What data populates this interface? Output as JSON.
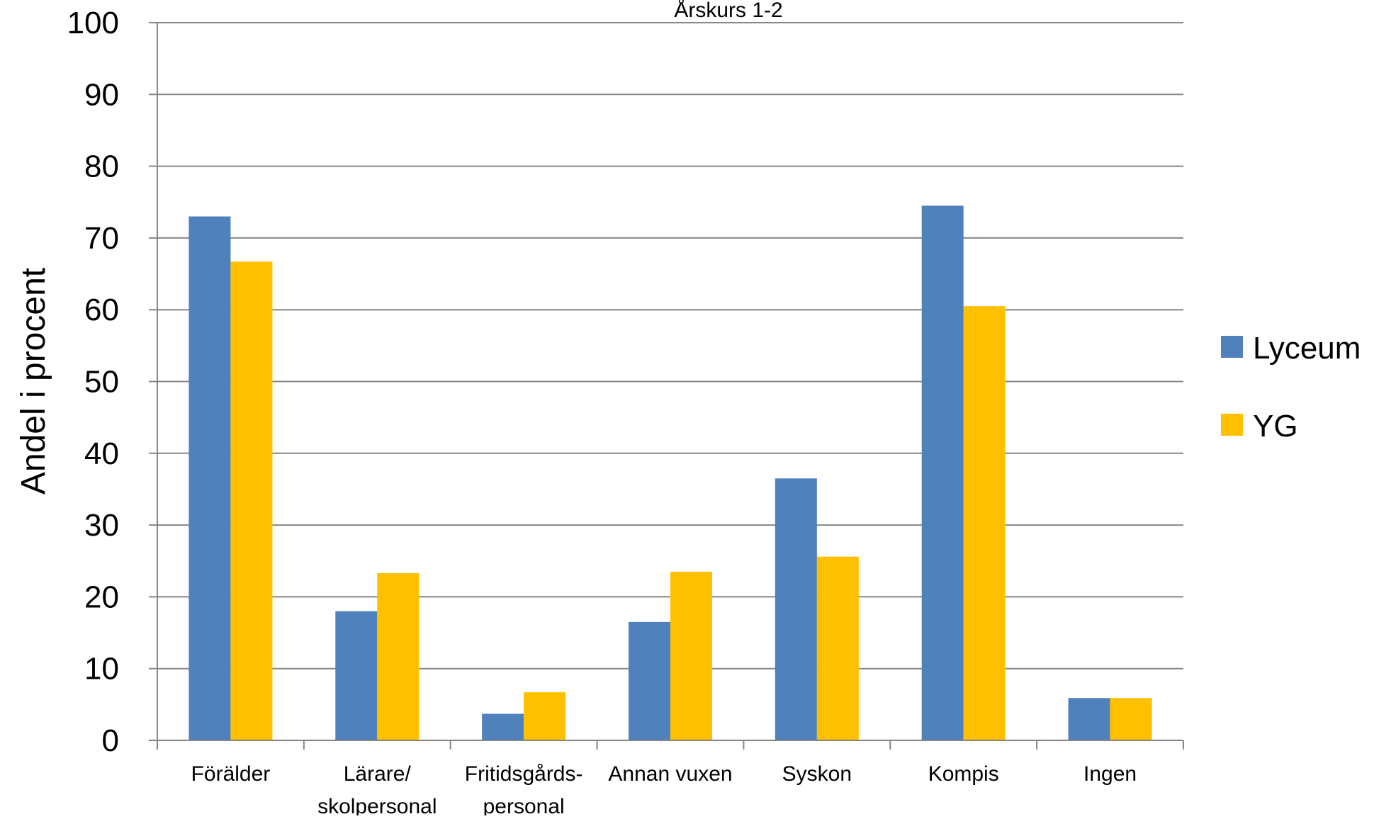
{
  "chart_data": {
    "type": "bar",
    "title": "Årskurs 1-2",
    "ylabel": "Andel i procent",
    "xlabel": "",
    "ylim": [
      0,
      100
    ],
    "yticks": [
      0,
      10,
      20,
      30,
      40,
      50,
      60,
      70,
      80,
      90,
      100
    ],
    "grid": true,
    "legend": "right",
    "categories": [
      [
        "Förälder"
      ],
      [
        "Lärare/",
        "skolpersonal"
      ],
      [
        "Fritidsgårds-",
        "personal"
      ],
      [
        "Annan vuxen"
      ],
      [
        "Syskon"
      ],
      [
        "Kompis"
      ],
      [
        "Ingen"
      ]
    ],
    "series": [
      {
        "name": "Lyceum",
        "color": "#4f81bd",
        "values": [
          73,
          18,
          3.7,
          16.5,
          36.5,
          74.5,
          5.9
        ]
      },
      {
        "name": "YG",
        "color": "#ffc000",
        "values": [
          66.7,
          23.3,
          6.7,
          23.5,
          25.6,
          60.5,
          5.9
        ]
      }
    ]
  }
}
